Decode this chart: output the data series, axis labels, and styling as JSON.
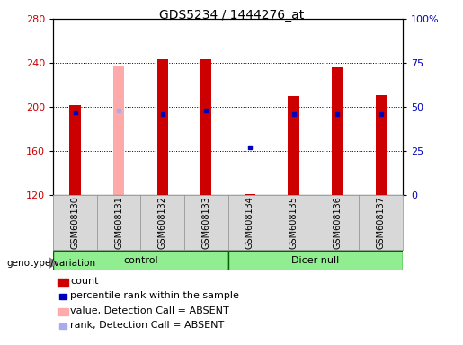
{
  "title": "GDS5234 / 1444276_at",
  "samples": [
    "GSM608130",
    "GSM608131",
    "GSM608132",
    "GSM608133",
    "GSM608134",
    "GSM608135",
    "GSM608136",
    "GSM608137"
  ],
  "count_values": [
    202,
    null,
    243,
    243,
    121,
    210,
    236,
    211
  ],
  "percentile_rank": [
    47,
    null,
    46,
    48,
    null,
    46,
    46,
    46
  ],
  "absent_value": [
    null,
    237,
    null,
    null,
    null,
    null,
    null,
    null
  ],
  "absent_rank": [
    null,
    48,
    null,
    null,
    null,
    null,
    null,
    null
  ],
  "absent_rank_blue_dot": [
    null,
    null,
    null,
    null,
    27,
    null,
    null,
    null
  ],
  "control_indices": [
    0,
    1,
    2,
    3
  ],
  "dicer_indices": [
    4,
    5,
    6,
    7
  ],
  "ymin": 120,
  "ymax": 280,
  "y_ticks": [
    120,
    160,
    200,
    240,
    280
  ],
  "right_yticks": [
    0,
    25,
    50,
    75,
    100
  ],
  "right_yticklabels": [
    "0",
    "25",
    "50",
    "75",
    "100%"
  ],
  "bar_width": 0.25,
  "bar_color_count": "#cc0000",
  "bar_color_absent_val": "#ffaaaa",
  "dot_color_rank": "#0000bb",
  "dot_color_absent_rank": "#aaaaee",
  "plot_bg": "#ffffff",
  "label_bg": "#d8d8d8",
  "group_bg": "#90ee90",
  "left_tick_color": "#cc0000",
  "right_tick_color": "#0000bb",
  "title_fontsize": 10,
  "tick_fontsize": 8,
  "legend_fontsize": 8,
  "sample_fontsize": 7
}
